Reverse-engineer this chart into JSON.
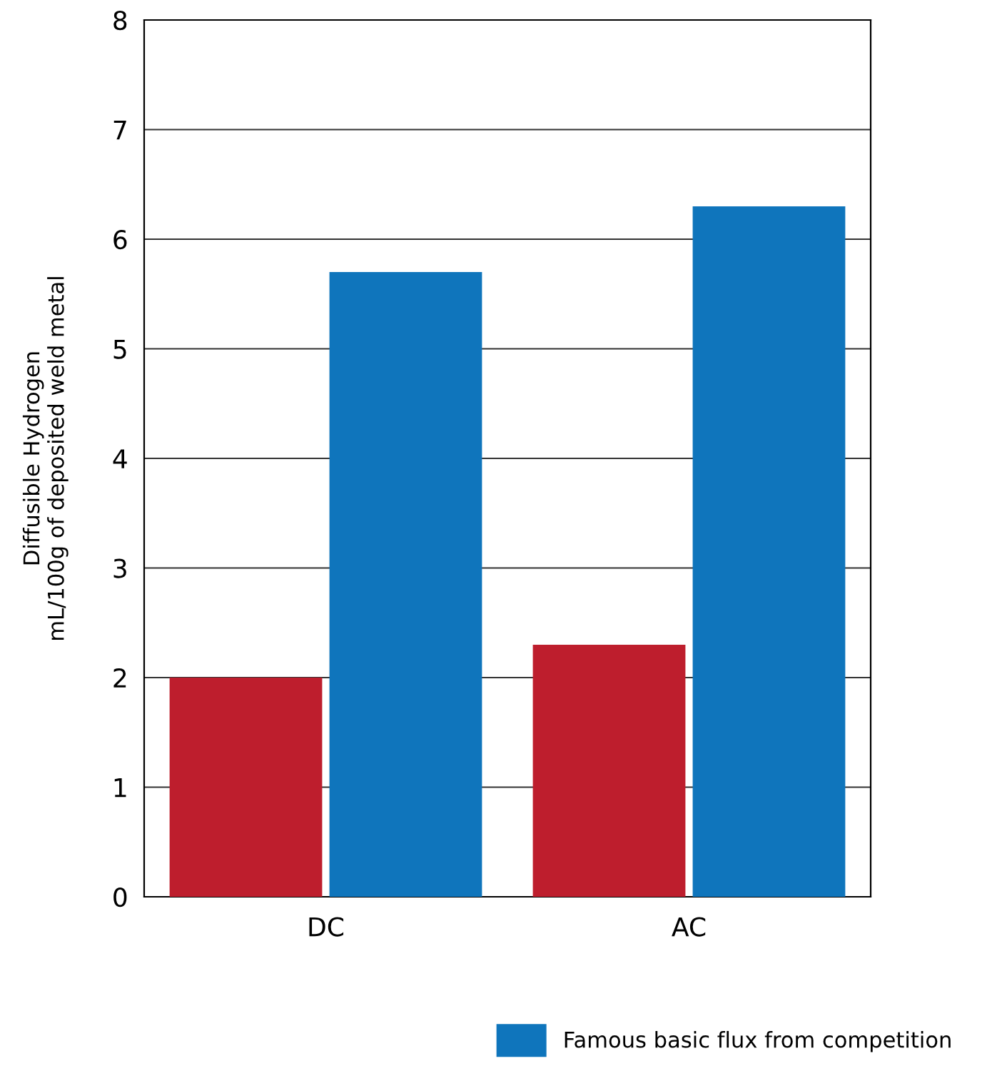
{
  "chart_data": {
    "type": "bar",
    "ylabel": "Diffusible Hydrogen\nmL/100g of deposited weld metal",
    "categories": [
      "DC",
      "AC"
    ],
    "series": [
      {
        "color": "#be1e2d",
        "values": [
          2.0,
          2.3
        ]
      },
      {
        "name": "Famous basic flux from competition",
        "color": "#0f75bc",
        "values": [
          5.7,
          6.3
        ]
      }
    ],
    "ylim": [
      0,
      8
    ],
    "yticks": [
      0,
      1,
      2,
      3,
      4,
      5,
      6,
      7,
      8
    ],
    "grid": "y",
    "legend": "bottom"
  }
}
